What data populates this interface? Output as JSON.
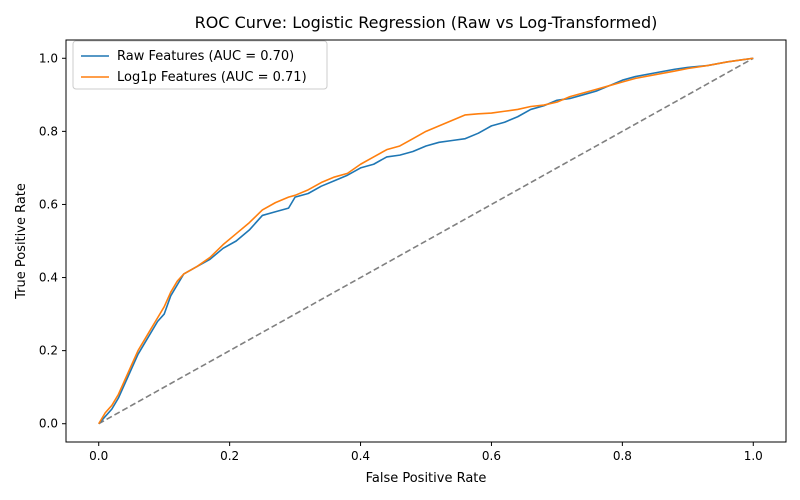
{
  "chart_data": {
    "type": "line",
    "title": "ROC Curve: Logistic Regression (Raw vs Log-Transformed)",
    "xlabel": "False Positive Rate",
    "ylabel": "True Positive Rate",
    "xlim": [
      -0.05,
      1.05
    ],
    "ylim": [
      -0.05,
      1.05
    ],
    "xticks": [
      0.0,
      0.2,
      0.4,
      0.6,
      0.8,
      1.0
    ],
    "yticks": [
      0.0,
      0.2,
      0.4,
      0.6,
      0.8,
      1.0
    ],
    "xtick_labels": [
      "0.0",
      "0.2",
      "0.4",
      "0.6",
      "0.8",
      "1.0"
    ],
    "ytick_labels": [
      "0.0",
      "0.2",
      "0.4",
      "0.6",
      "0.8",
      "1.0"
    ],
    "grid": false,
    "legend_position": "upper-left",
    "series": [
      {
        "name": "Raw Features (AUC = 0.70)",
        "color": "#1f77b4",
        "style": "solid",
        "x": [
          0.0,
          0.01,
          0.02,
          0.03,
          0.04,
          0.05,
          0.06,
          0.07,
          0.08,
          0.09,
          0.1,
          0.11,
          0.12,
          0.13,
          0.15,
          0.17,
          0.19,
          0.21,
          0.23,
          0.25,
          0.27,
          0.29,
          0.3,
          0.32,
          0.34,
          0.36,
          0.38,
          0.4,
          0.42,
          0.44,
          0.46,
          0.48,
          0.5,
          0.52,
          0.54,
          0.56,
          0.58,
          0.6,
          0.62,
          0.64,
          0.66,
          0.68,
          0.7,
          0.72,
          0.74,
          0.76,
          0.78,
          0.8,
          0.82,
          0.85,
          0.88,
          0.9,
          0.93,
          0.96,
          0.98,
          1.0
        ],
        "y": [
          0.0,
          0.02,
          0.04,
          0.07,
          0.11,
          0.15,
          0.19,
          0.22,
          0.25,
          0.28,
          0.3,
          0.35,
          0.38,
          0.41,
          0.43,
          0.45,
          0.48,
          0.5,
          0.53,
          0.57,
          0.58,
          0.59,
          0.62,
          0.63,
          0.65,
          0.665,
          0.68,
          0.7,
          0.71,
          0.73,
          0.735,
          0.745,
          0.76,
          0.77,
          0.775,
          0.78,
          0.795,
          0.815,
          0.825,
          0.84,
          0.86,
          0.87,
          0.885,
          0.89,
          0.9,
          0.91,
          0.925,
          0.94,
          0.95,
          0.96,
          0.97,
          0.975,
          0.98,
          0.99,
          0.995,
          1.0
        ]
      },
      {
        "name": "Log1p Features (AUC = 0.71)",
        "color": "#ff7f0e",
        "style": "solid",
        "x": [
          0.0,
          0.01,
          0.02,
          0.03,
          0.04,
          0.05,
          0.06,
          0.07,
          0.08,
          0.09,
          0.1,
          0.11,
          0.12,
          0.13,
          0.15,
          0.17,
          0.19,
          0.21,
          0.23,
          0.25,
          0.27,
          0.29,
          0.3,
          0.32,
          0.34,
          0.36,
          0.38,
          0.4,
          0.42,
          0.44,
          0.46,
          0.48,
          0.5,
          0.52,
          0.54,
          0.56,
          0.58,
          0.6,
          0.62,
          0.64,
          0.66,
          0.68,
          0.7,
          0.72,
          0.74,
          0.76,
          0.78,
          0.8,
          0.82,
          0.85,
          0.88,
          0.9,
          0.93,
          0.96,
          0.98,
          1.0
        ],
        "y": [
          0.0,
          0.03,
          0.05,
          0.08,
          0.12,
          0.16,
          0.2,
          0.23,
          0.26,
          0.29,
          0.32,
          0.36,
          0.39,
          0.41,
          0.43,
          0.455,
          0.49,
          0.52,
          0.55,
          0.585,
          0.605,
          0.62,
          0.625,
          0.64,
          0.66,
          0.675,
          0.685,
          0.71,
          0.73,
          0.75,
          0.76,
          0.78,
          0.8,
          0.815,
          0.83,
          0.845,
          0.848,
          0.85,
          0.855,
          0.86,
          0.868,
          0.872,
          0.88,
          0.895,
          0.905,
          0.915,
          0.925,
          0.935,
          0.945,
          0.955,
          0.965,
          0.972,
          0.98,
          0.99,
          0.995,
          1.0
        ]
      },
      {
        "color": "#808080",
        "style": "dashed",
        "x": [
          0.0,
          1.0
        ],
        "y": [
          0.0,
          1.0
        ]
      }
    ]
  }
}
